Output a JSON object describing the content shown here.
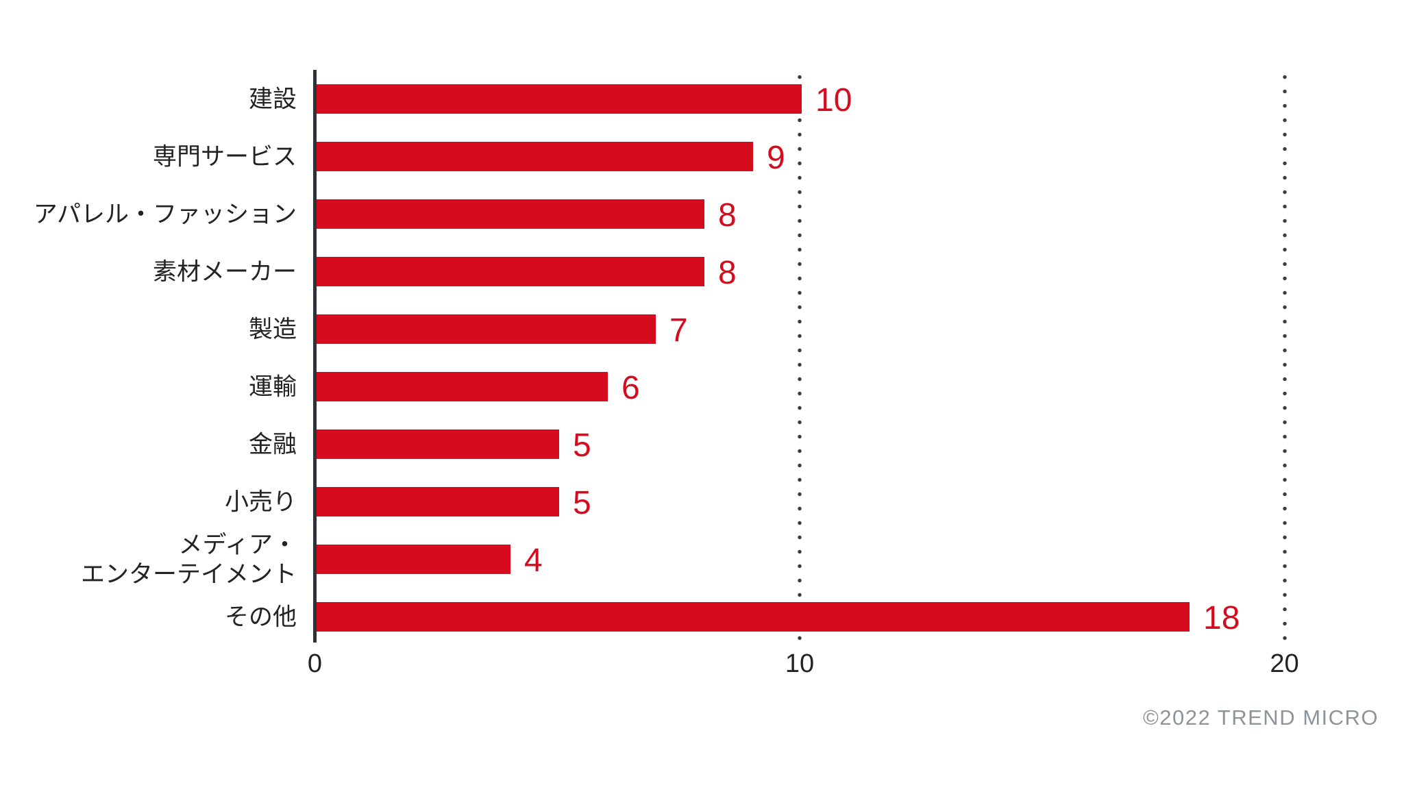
{
  "chart_data": {
    "type": "bar",
    "orientation": "horizontal",
    "title": "",
    "xlabel": "",
    "ylabel": "",
    "categories": [
      "建設",
      "専門サービス",
      "アパレル・ファッション",
      "素材メーカー",
      "製造",
      "運輸",
      "金融",
      "小売り",
      "メディア・\nエンターテイメント",
      "その他"
    ],
    "values": [
      10,
      9,
      8,
      8,
      7,
      6,
      5,
      5,
      4,
      18
    ],
    "xlim": [
      0,
      20
    ],
    "x_ticks": [
      0,
      10,
      20
    ],
    "grid_ticks": [
      10,
      20
    ],
    "grid_style": "dotted-vertical",
    "legend": "none",
    "bar_color": "#d60b1e",
    "value_label_color": "#d60b1e",
    "axis_color": "#2e333b",
    "text_color": "#232323"
  },
  "footer": {
    "copyright": "©2022 TREND MICRO"
  }
}
